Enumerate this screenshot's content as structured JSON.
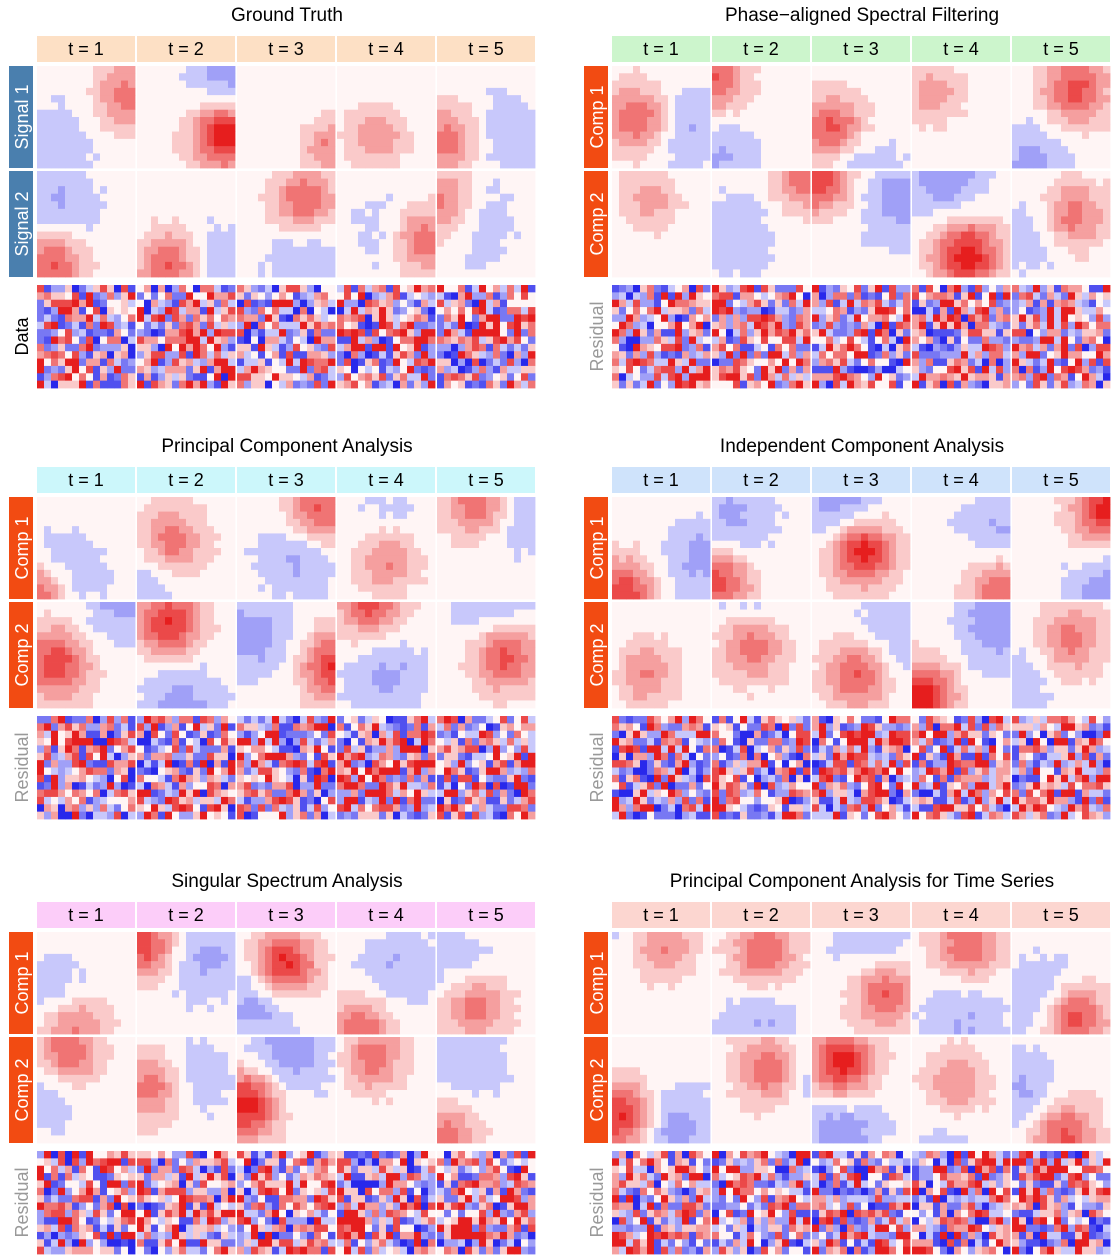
{
  "panels": [
    {
      "title": "Ground Truth",
      "times": [
        "t = 1",
        "t = 2",
        "t = 3",
        "t = 4",
        "t = 5"
      ],
      "rows": [
        "Signal 1",
        "Signal 2",
        "Data"
      ]
    },
    {
      "title": "Phase−aligned Spectral Filtering",
      "times": [
        "t = 1",
        "t = 2",
        "t = 3",
        "t = 4",
        "t = 5"
      ],
      "rows": [
        "Comp 1",
        "Comp 2",
        "Residual"
      ]
    },
    {
      "title": "Principal Component Analysis",
      "times": [
        "t = 1",
        "t = 2",
        "t = 3",
        "t = 4",
        "t = 5"
      ],
      "rows": [
        "Comp 1",
        "Comp 2",
        "Residual"
      ]
    },
    {
      "title": "Independent Component Analysis",
      "times": [
        "t = 1",
        "t = 2",
        "t = 3",
        "t = 4",
        "t = 5"
      ],
      "rows": [
        "Comp 1",
        "Comp 2",
        "Residual"
      ]
    },
    {
      "title": "Singular Spectrum Analysis",
      "times": [
        "t = 1",
        "t = 2",
        "t = 3",
        "t = 4",
        "t = 5"
      ],
      "rows": [
        "Comp 1",
        "Comp 2",
        "Residual"
      ]
    },
    {
      "title": "Principal Component Analysis for Time Series",
      "times": [
        "t = 1",
        "t = 2",
        "t = 3",
        "t = 4",
        "t = 5"
      ],
      "rows": [
        "Comp 1",
        "Comp 2",
        "Residual"
      ]
    }
  ]
}
